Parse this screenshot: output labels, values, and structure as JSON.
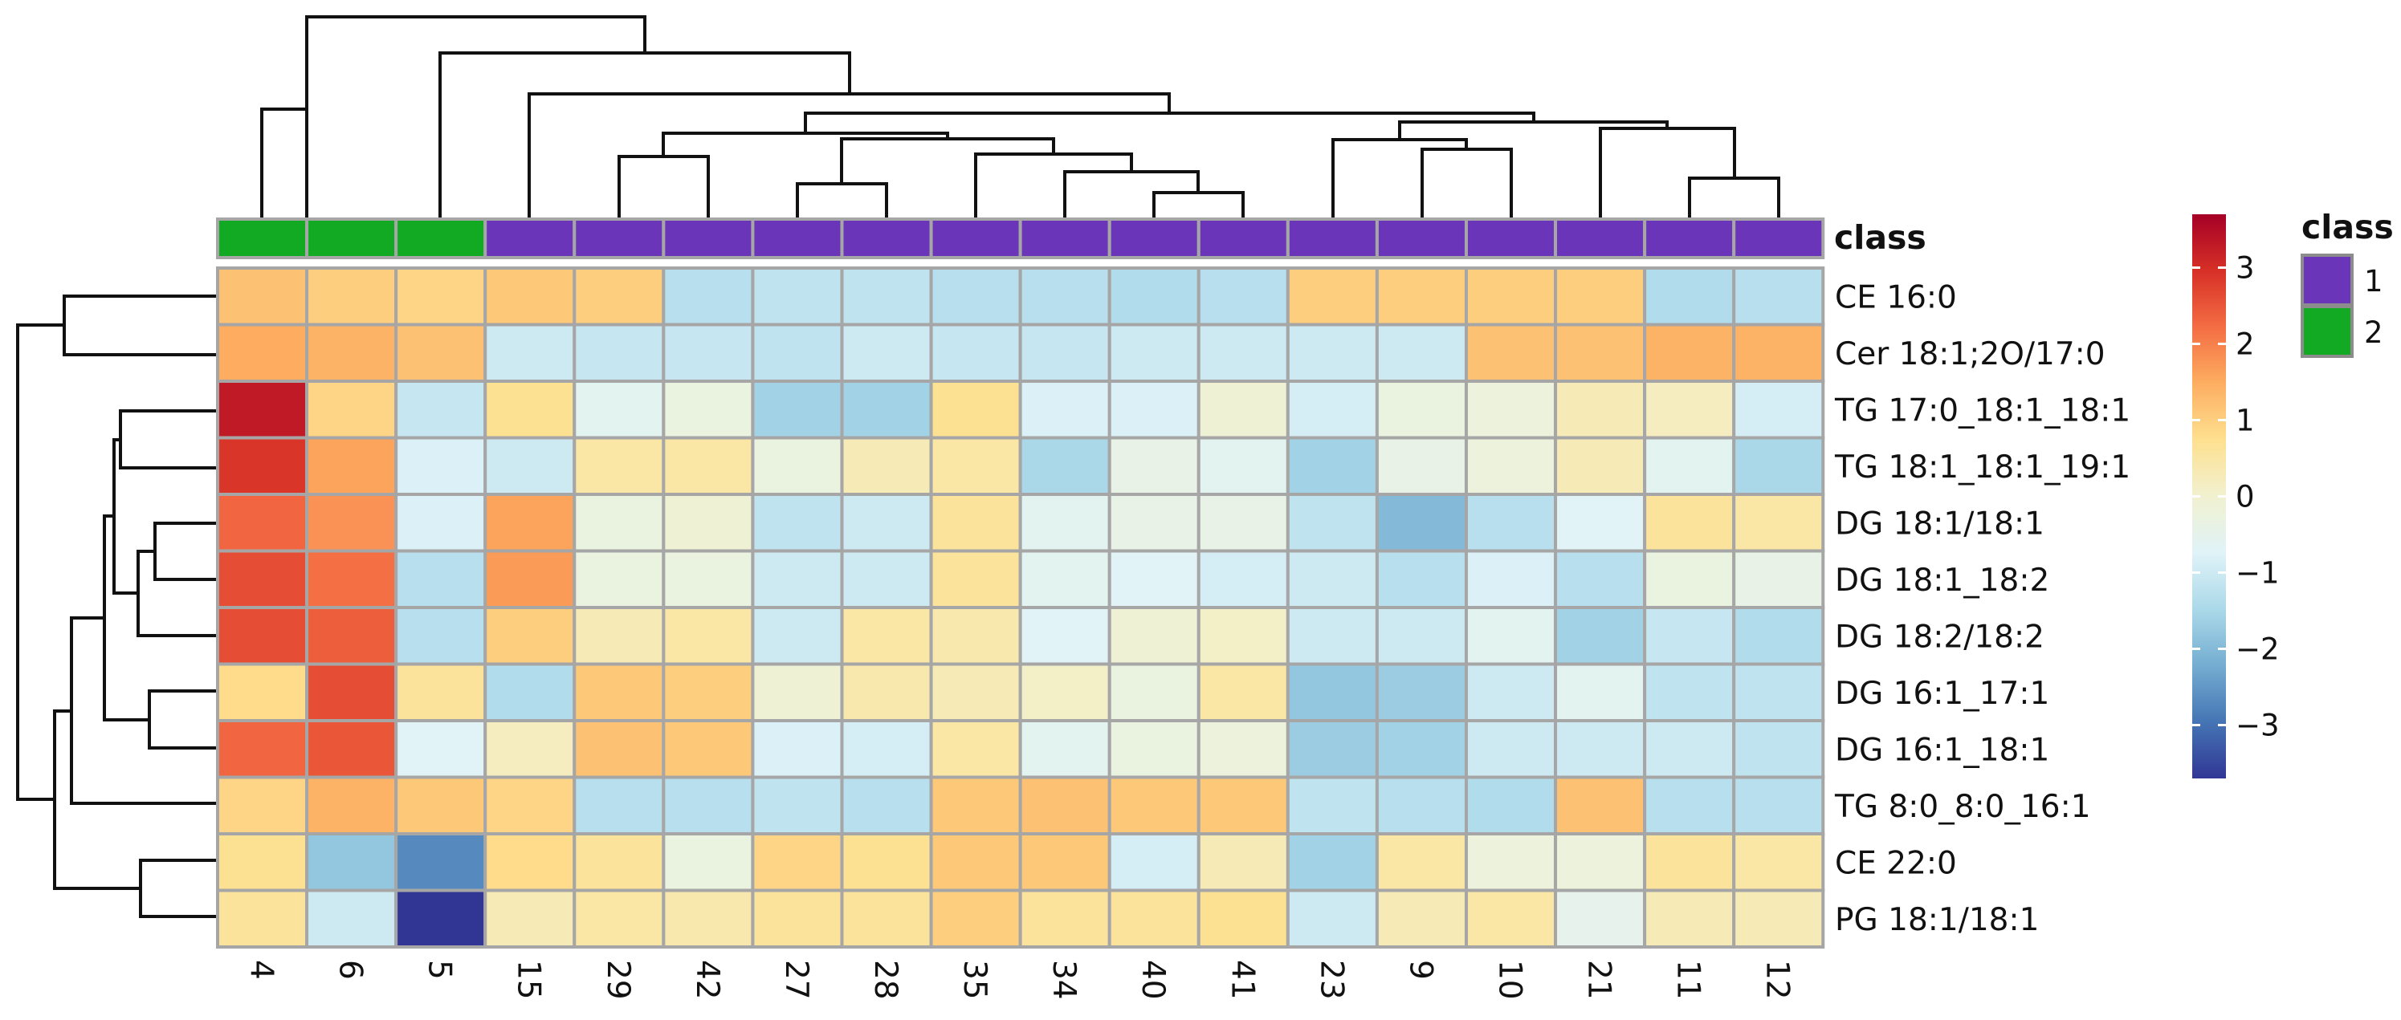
{
  "chart_data": {
    "type": "heatmap",
    "title": "",
    "columns": [
      "4",
      "6",
      "5",
      "15",
      "29",
      "42",
      "27",
      "28",
      "35",
      "34",
      "40",
      "41",
      "23",
      "9",
      "10",
      "21",
      "11",
      "12"
    ],
    "column_class": [
      2,
      2,
      2,
      1,
      1,
      1,
      1,
      1,
      1,
      1,
      1,
      1,
      1,
      1,
      1,
      1,
      1,
      1
    ],
    "rows": [
      "CE 16:0",
      "Cer 18:1;2O/17:0",
      "TG 17:0_18:1_18:1",
      "TG 18:1_18:1_19:1",
      "DG 18:1/18:1",
      "DG 18:1_18:2",
      "DG 18:2/18:2",
      "DG 16:1_17:1",
      "DG 16:1_18:1",
      "TG 8:0_8:0_16:1",
      "CE 22:0",
      "PG 18:1/18:1"
    ],
    "values": [
      [
        1.2,
        1.0,
        0.9,
        1.1,
        1.0,
        -1.3,
        -1.2,
        -1.2,
        -1.3,
        -1.3,
        -1.4,
        -1.3,
        1.0,
        1.0,
        1.0,
        1.0,
        -1.4,
        -1.3
      ],
      [
        1.5,
        1.4,
        1.2,
        -1.0,
        -1.1,
        -1.1,
        -1.2,
        -1.0,
        -1.1,
        -1.1,
        -1.0,
        -1.0,
        -1.0,
        -1.0,
        1.2,
        1.2,
        1.4,
        1.4
      ],
      [
        3.3,
        0.9,
        -1.1,
        0.7,
        -0.6,
        -0.3,
        -1.6,
        -1.6,
        0.7,
        -0.8,
        -0.8,
        -0.1,
        -0.9,
        -0.3,
        -0.2,
        0.3,
        0.2,
        -0.9
      ],
      [
        2.9,
        1.6,
        -0.8,
        -1.0,
        0.5,
        0.5,
        -0.3,
        0.3,
        0.5,
        -1.5,
        -0.4,
        -0.6,
        -1.6,
        -0.4,
        -0.2,
        0.3,
        -0.6,
        -1.5
      ],
      [
        2.3,
        1.8,
        -0.8,
        1.6,
        -0.3,
        -0.1,
        -1.2,
        -1.0,
        0.6,
        -0.6,
        -0.4,
        -0.4,
        -1.2,
        -2.0,
        -1.3,
        -0.7,
        0.6,
        0.5
      ],
      [
        2.6,
        2.2,
        -1.3,
        1.7,
        -0.3,
        -0.3,
        -1.0,
        -1.0,
        0.6,
        -0.6,
        -0.7,
        -0.9,
        -1.0,
        -1.3,
        -0.8,
        -1.3,
        -0.3,
        -0.4
      ],
      [
        2.6,
        2.4,
        -1.3,
        1.0,
        0.3,
        0.5,
        -1.0,
        0.5,
        0.4,
        -0.7,
        -0.1,
        0.1,
        -1.0,
        -1.0,
        -0.6,
        -1.6,
        -1.1,
        -1.4
      ],
      [
        0.8,
        2.6,
        0.6,
        -1.4,
        1.1,
        1.0,
        -0.1,
        0.4,
        0.3,
        0.1,
        -0.3,
        0.5,
        -1.8,
        -1.7,
        -1.0,
        -0.6,
        -1.2,
        -1.2
      ],
      [
        2.3,
        2.5,
        -0.7,
        0.2,
        1.2,
        1.1,
        -0.8,
        -0.9,
        0.5,
        -0.6,
        -0.3,
        -0.2,
        -1.7,
        -1.6,
        -1.0,
        -1.0,
        -1.0,
        -1.2
      ],
      [
        0.9,
        1.4,
        1.1,
        0.9,
        -1.3,
        -1.3,
        -1.2,
        -1.3,
        1.1,
        1.2,
        1.1,
        1.1,
        -1.2,
        -1.3,
        -1.4,
        1.2,
        -1.3,
        -1.3
      ],
      [
        0.7,
        -1.8,
        -2.7,
        0.8,
        0.6,
        -0.3,
        0.9,
        0.7,
        1.1,
        1.1,
        -0.9,
        0.3,
        -1.6,
        0.5,
        -0.2,
        -0.2,
        0.6,
        0.5
      ],
      [
        0.6,
        -1.0,
        -3.7,
        0.3,
        0.5,
        0.4,
        0.6,
        0.6,
        1.0,
        0.6,
        0.6,
        0.7,
        -1.0,
        0.3,
        0.5,
        -0.5,
        0.3,
        0.3
      ]
    ],
    "colorbar": {
      "ticks": [
        3,
        2,
        1,
        0,
        -1,
        -2,
        -3
      ],
      "tick_labels": [
        "3",
        "2",
        "1",
        "0",
        "−1",
        "−2",
        "−3"
      ],
      "range": [
        -3.7,
        3.7
      ]
    },
    "annotation_title": "class",
    "legend": {
      "title": "class",
      "entries": [
        {
          "label": "1",
          "color": "#6a35b8"
        },
        {
          "label": "2",
          "color": "#11aa22"
        }
      ]
    },
    "colors": {
      "class_1": "#6a35b8",
      "class_2": "#11aa22",
      "grid": "#a6a6a6",
      "scale_low": "#313695",
      "scale_high": "#d7191c"
    }
  }
}
